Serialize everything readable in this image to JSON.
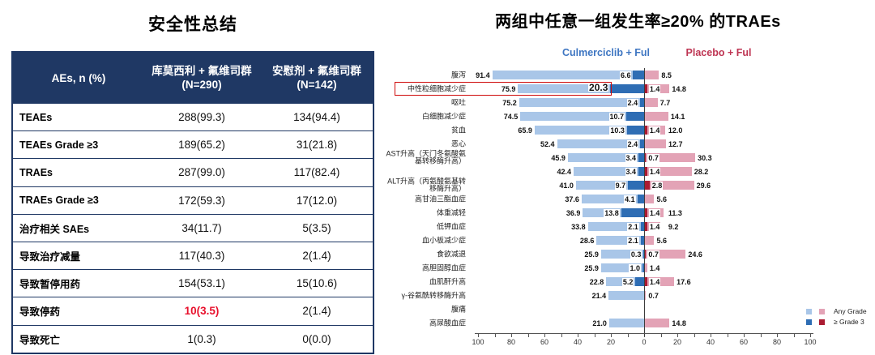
{
  "left_panel": {
    "title": "安全性总结",
    "table": {
      "header": {
        "col0": "AEs, n (%)",
        "col1_line1": "库莫西利 + 氟维司群",
        "col1_line2": "(N=290)",
        "col2_line1": "安慰剂 + 氟维司群",
        "col2_line2": "(N=142)"
      },
      "rows": [
        {
          "label": "TEAEs",
          "c1": "288(99.3)",
          "c2": "134(94.4)",
          "c1_red": false
        },
        {
          "label": "TEAEs Grade ≥3",
          "c1": "189(65.2)",
          "c2": "31(21.8)",
          "c1_red": false
        },
        {
          "label": "TRAEs",
          "c1": "287(99.0)",
          "c2": "117(82.4)",
          "c1_red": false
        },
        {
          "label": "TRAEs Grade ≥3",
          "c1": "172(59.3)",
          "c2": "17(12.0)",
          "c1_red": false
        },
        {
          "label": "治疗相关 SAEs",
          "c1": "34(11.7)",
          "c2": "5(3.5)",
          "c1_red": false
        },
        {
          "label": "导致治疗减量",
          "c1": "117(40.3)",
          "c2": "2(1.4)",
          "c1_red": false
        },
        {
          "label": "导致暂停用药",
          "c1": "154(53.1)",
          "c2": "15(10.6)",
          "c1_red": false
        },
        {
          "label": "导致停药",
          "c1": "10(3.5)",
          "c2": "2(1.4)",
          "c1_red": true
        },
        {
          "label": "导致死亡",
          "c1": "1(0.3)",
          "c2": "0(0.0)",
          "c1_red": false
        }
      ]
    }
  },
  "right_panel": {
    "group_left": "Culmerciclib + Ful",
    "group_right": "Placebo + Ful",
    "group_left_color": "#3e76c2",
    "group_right_color": "#be3553",
    "legend_any": "Any Grade",
    "legend_grade3": "≥ Grade 3",
    "colors": {
      "culm_any": "#a9c6e8",
      "culm_grade3": "#2e6db4",
      "placebo_any": "#e3a3b6",
      "placebo_grade3": "#ab1b32",
      "highlight_box": "#cf0a0a",
      "table_navy": "#1f3864",
      "red_text": "#e8112d"
    }
  },
  "chart_data": {
    "type": "bar",
    "variant": "butterfly",
    "title": "两组中任意一组发生率≥20% 的TRAEs",
    "unit": "%",
    "xlim": [
      -100,
      100
    ],
    "axis_tick_labels": [
      100,
      80,
      60,
      40,
      20,
      0,
      20,
      40,
      60,
      80,
      100
    ],
    "legend": [
      "Any Grade",
      "≥ Grade 3"
    ],
    "series_groups": [
      "Culmerciclib + Ful",
      "Placebo + Ful"
    ],
    "rows": [
      {
        "label": "腹泻",
        "culm_any": 91.4,
        "culm_g3": 6.6,
        "pbo_g3": null,
        "pbo_any": 8.5,
        "highlight": false
      },
      {
        "label": "中性粒细胞减少症",
        "culm_any": 75.9,
        "culm_g3": 20.3,
        "pbo_g3": 1.4,
        "pbo_any": 14.8,
        "highlight": true
      },
      {
        "label": "呕吐",
        "culm_any": 75.2,
        "culm_g3": 2.4,
        "pbo_g3": null,
        "pbo_any": 7.7,
        "highlight": false
      },
      {
        "label": "白细胞减少症",
        "culm_any": 74.5,
        "culm_g3": 10.7,
        "pbo_g3": null,
        "pbo_any": 14.1,
        "highlight": false
      },
      {
        "label": "贫血",
        "culm_any": 65.9,
        "culm_g3": 10.3,
        "pbo_g3": 1.4,
        "pbo_any": 12.0,
        "highlight": false
      },
      {
        "label": "恶心",
        "culm_any": 52.4,
        "culm_g3": 2.4,
        "pbo_g3": null,
        "pbo_any": 12.7,
        "highlight": false
      },
      {
        "label": "AST升高（天门冬氨酸氨\n基转移酶升高）",
        "culm_any": 45.9,
        "culm_g3": 3.4,
        "pbo_g3": 0.7,
        "pbo_any": 30.3,
        "highlight": false
      },
      {
        "label": "",
        "culm_any": 42.4,
        "culm_g3": 3.4,
        "pbo_g3": 1.4,
        "pbo_any": 28.2,
        "highlight": false
      },
      {
        "label": "ALT升高（丙氨酸氨基转\n移酶升高）",
        "culm_any": 41.0,
        "culm_g3": 9.7,
        "pbo_g3": 2.8,
        "pbo_any": 29.6,
        "highlight": false
      },
      {
        "label": "高甘油三酯血症",
        "culm_any": 37.6,
        "culm_g3": 4.1,
        "pbo_g3": null,
        "pbo_any": 5.6,
        "highlight": false
      },
      {
        "label": "体重减轻",
        "culm_any": 36.9,
        "culm_g3": 13.8,
        "pbo_g3": 1.4,
        "pbo_any": 11.3,
        "highlight": false
      },
      {
        "label": "低钾血症",
        "culm_any": 33.8,
        "culm_g3": 2.1,
        "pbo_g3": 1.4,
        "pbo_any": 9.2,
        "highlight": false
      },
      {
        "label": "血小板减少症",
        "culm_any": 28.6,
        "culm_g3": 2.1,
        "pbo_g3": null,
        "pbo_any": 5.6,
        "highlight": false
      },
      {
        "label": "食欲减退",
        "culm_any": 25.9,
        "culm_g3": 0.3,
        "pbo_g3": 0.7,
        "pbo_any": 24.6,
        "highlight": false
      },
      {
        "label": "高胆固醇血症",
        "culm_any": 25.9,
        "culm_g3": 1.0,
        "pbo_g3": null,
        "pbo_any": 1.4,
        "highlight": false
      },
      {
        "label": "血肌酐升高",
        "culm_any": 22.8,
        "culm_g3": 5.2,
        "pbo_g3": 1.4,
        "pbo_any": 17.6,
        "highlight": false
      },
      {
        "label": "γ-谷氨酰转移酶升高",
        "culm_any": 21.4,
        "culm_g3": null,
        "pbo_g3": null,
        "pbo_any": 0.7,
        "highlight": false
      },
      {
        "label": "腹痛",
        "culm_any": null,
        "culm_g3": null,
        "pbo_g3": null,
        "pbo_any": null,
        "highlight": false
      },
      {
        "label": "高尿酸血症",
        "culm_any": 21.0,
        "culm_g3": null,
        "pbo_g3": null,
        "pbo_any": 14.8,
        "highlight": false
      }
    ]
  }
}
